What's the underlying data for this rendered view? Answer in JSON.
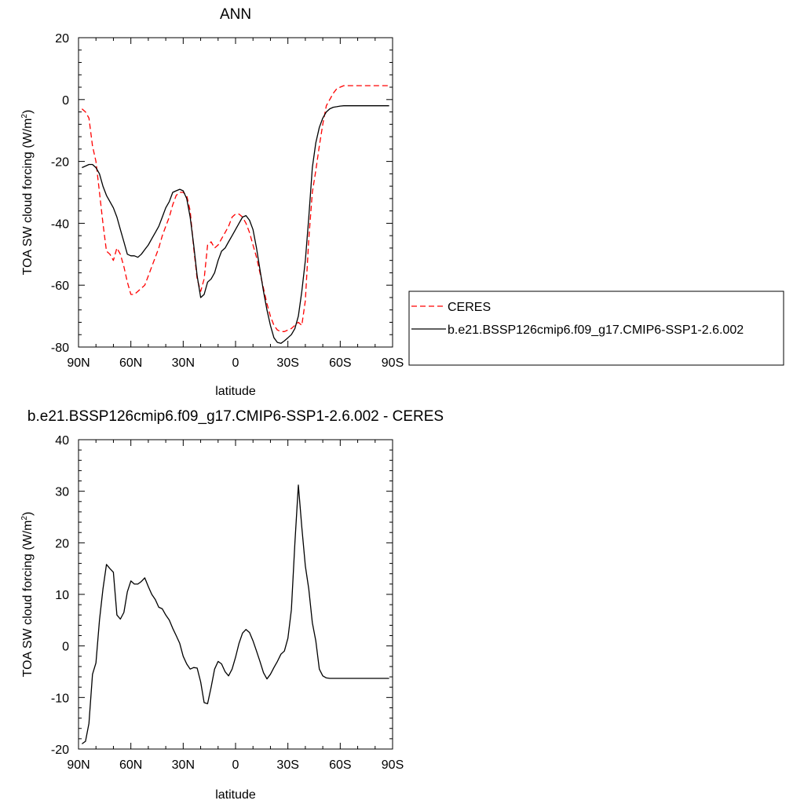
{
  "chart_data": [
    {
      "type": "line",
      "title": "ANN",
      "xlabel": "latitude",
      "ylabel_main": "TOA SW cloud forcing (W/m",
      "ylabel_sup": "2",
      "ylabel_end": ")",
      "xlim": [
        90,
        -90
      ],
      "ylim": [
        -80,
        20
      ],
      "xticks": [
        {
          "value": 90,
          "label": "90N"
        },
        {
          "value": 60,
          "label": "60N"
        },
        {
          "value": 30,
          "label": "30N"
        },
        {
          "value": 0,
          "label": "0"
        },
        {
          "value": -30,
          "label": "30S"
        },
        {
          "value": -60,
          "label": "60S"
        },
        {
          "value": -90,
          "label": "90S"
        }
      ],
      "yticks": [
        -80,
        -60,
        -40,
        -20,
        0,
        20
      ],
      "legend_position": "right",
      "series": [
        {
          "name": "CERES",
          "color": "#ff0000",
          "dash": "dashed",
          "x": [
            88,
            86,
            84,
            82,
            80,
            78,
            76,
            74,
            72,
            70,
            68,
            66,
            64,
            62,
            60,
            58,
            56,
            54,
            52,
            50,
            48,
            46,
            44,
            42,
            40,
            38,
            36,
            34,
            32,
            30,
            28,
            26,
            24,
            22,
            20,
            18,
            16,
            14,
            12,
            10,
            8,
            6,
            4,
            2,
            0,
            -2,
            -4,
            -6,
            -8,
            -10,
            -12,
            -14,
            -16,
            -18,
            -20,
            -22,
            -24,
            -26,
            -28,
            -30,
            -32,
            -34,
            -36,
            -38,
            -40,
            -42,
            -44,
            -46,
            -48,
            -50,
            -52,
            -54,
            -56,
            -58,
            -60,
            -62,
            -64,
            -66,
            -68,
            -70,
            -72,
            -74,
            -76,
            -78,
            -80,
            -82,
            -84,
            -86,
            -88
          ],
          "y": [
            -3,
            -4,
            -6,
            -15,
            -20,
            -30,
            -40,
            -49,
            -50,
            -52,
            -48,
            -50,
            -54,
            -59,
            -63,
            -63,
            -62,
            -61,
            -60,
            -57,
            -54,
            -51,
            -48,
            -44,
            -41,
            -38,
            -34,
            -31,
            -30,
            -30,
            -31,
            -36,
            -48,
            -58,
            -62,
            -58,
            -47,
            -46,
            -48,
            -47,
            -45,
            -43,
            -41,
            -38,
            -37,
            -37,
            -38,
            -40,
            -43,
            -47,
            -51,
            -56,
            -61,
            -66,
            -70,
            -73,
            -74.5,
            -75,
            -75,
            -74.5,
            -74,
            -73,
            -72,
            -73,
            -65,
            -45,
            -30,
            -23,
            -15,
            -8,
            -2,
            0,
            2,
            3.5,
            4,
            4.5,
            4.5,
            4.5,
            4.5,
            4.5,
            4.5,
            4.5,
            4.5,
            4.5,
            4.5,
            4.5,
            4.5,
            4.5,
            4.5
          ]
        },
        {
          "name": "b.e21.BSSP126cmip6.f09_g17.CMIP6-SSP1-2.6.002",
          "color": "#000000",
          "dash": "solid",
          "x": [
            88,
            86,
            84,
            82,
            80,
            78,
            76,
            74,
            72,
            70,
            68,
            66,
            64,
            62,
            60,
            58,
            56,
            54,
            52,
            50,
            48,
            46,
            44,
            42,
            40,
            38,
            36,
            34,
            32,
            30,
            28,
            26,
            24,
            22,
            20,
            18,
            16,
            14,
            12,
            10,
            8,
            6,
            4,
            2,
            0,
            -2,
            -4,
            -6,
            -8,
            -10,
            -12,
            -14,
            -16,
            -18,
            -20,
            -22,
            -24,
            -26,
            -28,
            -30,
            -32,
            -34,
            -36,
            -38,
            -40,
            -42,
            -44,
            -46,
            -48,
            -50,
            -52,
            -54,
            -56,
            -58,
            -60,
            -62,
            -64,
            -66,
            -68,
            -70,
            -72,
            -74,
            -76,
            -78,
            -80,
            -82,
            -84,
            -86,
            -88
          ],
          "y": [
            -22,
            -21.5,
            -21,
            -21,
            -22,
            -24,
            -28,
            -31,
            -33,
            -35,
            -38,
            -42,
            -46,
            -50,
            -50.5,
            -50.5,
            -51,
            -50,
            -48.5,
            -47,
            -45,
            -43,
            -41,
            -38,
            -35,
            -33,
            -30,
            -29.5,
            -29,
            -29.5,
            -32,
            -38,
            -47,
            -57,
            -64,
            -63,
            -59,
            -58,
            -56,
            -52,
            -49,
            -48,
            -46,
            -44,
            -42,
            -40,
            -38,
            -37.5,
            -39,
            -42,
            -48,
            -55,
            -62,
            -68,
            -73,
            -77,
            -78.5,
            -78.8,
            -78,
            -77,
            -76,
            -74,
            -70,
            -62,
            -52,
            -38,
            -22,
            -14,
            -9,
            -6,
            -4,
            -3,
            -2.5,
            -2.3,
            -2.1,
            -2,
            -2,
            -2,
            -2,
            -2,
            -2,
            -2,
            -2,
            -2,
            -2,
            -2,
            -2,
            -2,
            -2
          ]
        }
      ]
    },
    {
      "type": "line",
      "title": "b.e21.BSSP126cmip6.f09_g17.CMIP6-SSP1-2.6.002 - CERES",
      "xlabel": "latitude",
      "ylabel_main": "TOA SW cloud forcing (W/m",
      "ylabel_sup": "2",
      "ylabel_end": ")",
      "xlim": [
        90,
        -90
      ],
      "ylim": [
        -20,
        40
      ],
      "xticks": [
        {
          "value": 90,
          "label": "90N"
        },
        {
          "value": 60,
          "label": "60N"
        },
        {
          "value": 30,
          "label": "30N"
        },
        {
          "value": 0,
          "label": "0"
        },
        {
          "value": -30,
          "label": "30S"
        },
        {
          "value": -60,
          "label": "60S"
        },
        {
          "value": -90,
          "label": "90S"
        }
      ],
      "yticks": [
        -20,
        -10,
        0,
        10,
        20,
        30,
        40
      ],
      "series": [
        {
          "color": "#000000",
          "dash": "solid",
          "x": [
            88,
            86,
            84,
            82,
            80,
            78,
            76,
            74,
            72,
            70,
            68,
            66,
            64,
            62,
            60,
            58,
            56,
            54,
            52,
            50,
            48,
            46,
            44,
            42,
            40,
            38,
            36,
            34,
            32,
            30,
            28,
            26,
            24,
            22,
            20,
            18,
            16,
            14,
            12,
            10,
            8,
            6,
            4,
            2,
            0,
            -2,
            -4,
            -6,
            -8,
            -10,
            -12,
            -14,
            -16,
            -18,
            -20,
            -22,
            -24,
            -26,
            -28,
            -30,
            -32,
            -34,
            -36,
            -38,
            -40,
            -42,
            -44,
            -46,
            -48,
            -50,
            -52,
            -54,
            -56,
            -58,
            -60,
            -62,
            -64,
            -66,
            -68,
            -70,
            -72,
            -74,
            -76,
            -78,
            -80,
            -82,
            -84,
            -86,
            -88
          ],
          "y": [
            -19,
            -18.5,
            -15,
            -5.5,
            -3.3,
            5,
            11,
            15.8,
            15,
            14.3,
            6,
            5.2,
            6.5,
            10.5,
            12.6,
            12,
            12,
            12.5,
            13.2,
            11.5,
            10,
            9,
            7.5,
            7.2,
            6,
            5,
            3.4,
            2,
            0.5,
            -2,
            -3.5,
            -4.5,
            -4.2,
            -4.3,
            -7,
            -11,
            -11.2,
            -8,
            -4.5,
            -3,
            -3.5,
            -5,
            -5.8,
            -4.5,
            -2.2,
            0.5,
            2.5,
            3.2,
            2.6,
            1,
            -1,
            -3,
            -5.2,
            -6.4,
            -5.5,
            -4.2,
            -3,
            -1.6,
            -1,
            1.5,
            7,
            20,
            31.2,
            23,
            15.5,
            11,
            4.5,
            1,
            -4.5,
            -5.8,
            -6.2,
            -6.3,
            -6.3,
            -6.3,
            -6.3,
            -6.3,
            -6.3,
            -6.3,
            -6.3,
            -6.3,
            -6.3,
            -6.3,
            -6.3,
            -6.3,
            -6.3,
            -6.3,
            -6.3,
            -6.3,
            -6.3
          ]
        }
      ]
    }
  ]
}
